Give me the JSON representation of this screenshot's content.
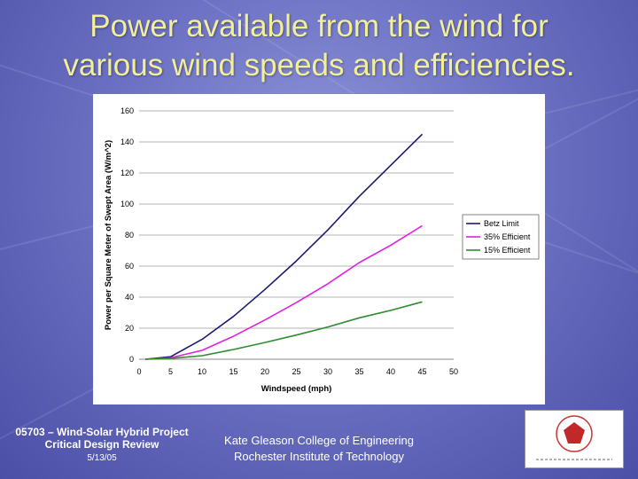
{
  "slide": {
    "title_line1": "Power available from the wind for",
    "title_line2": "various wind speeds and efficiencies.",
    "title_color": "#f2ef9a",
    "footer_left_line1": "05703 – Wind-Solar Hybrid Project",
    "footer_left_line2": "Critical Design Review",
    "footer_date": "5/13/05",
    "footer_center_line1": "Kate Gleason College of Engineering",
    "footer_center_line2": "Rochester Institute of Technology",
    "logo_icon": "rit-senior-design-logo"
  },
  "chart_data": {
    "type": "line",
    "xlabel": "Windspeed (mph)",
    "ylabel": "Power per Square Meter of Swept Area (W/m^2)",
    "xlim": [
      0,
      50
    ],
    "ylim": [
      0,
      160
    ],
    "xticks": [
      0,
      5,
      10,
      15,
      20,
      25,
      30,
      35,
      40,
      45,
      50
    ],
    "yticks": [
      0,
      20,
      40,
      60,
      80,
      100,
      120,
      140,
      160
    ],
    "grid": "horizontal",
    "legend_position": "right",
    "x": [
      1,
      5,
      10,
      15,
      20,
      25,
      30,
      35,
      40,
      45
    ],
    "series": [
      {
        "name": "Betz Limit",
        "color": "#1a1a6e",
        "values": [
          0.0,
          1.6,
          12.8,
          27.6,
          45.0,
          63.4,
          83.3,
          105.0,
          125.0,
          145.0
        ]
      },
      {
        "name": "35% Efficient",
        "color": "#e020e0",
        "values": [
          0.0,
          0.9,
          5.7,
          14.8,
          25.3,
          36.5,
          48.6,
          62.3,
          73.5,
          86.0
        ]
      },
      {
        "name": "15% Efficient",
        "color": "#2e8b2e",
        "values": [
          0.0,
          0.5,
          2.3,
          6.3,
          10.8,
          15.6,
          20.8,
          26.7,
          31.5,
          37.0
        ]
      }
    ]
  }
}
